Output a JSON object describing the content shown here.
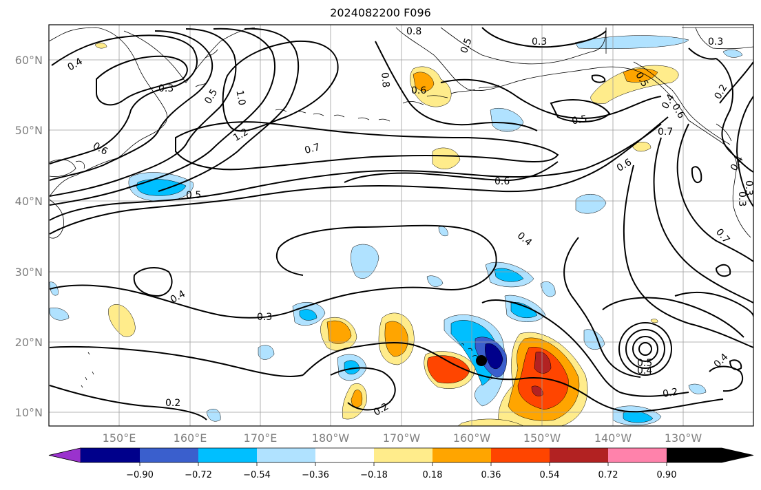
{
  "title": "2024082200 F096",
  "map": {
    "lat_labels": [
      "10°N",
      "20°N",
      "30°N",
      "40°N",
      "50°N",
      "60°N"
    ],
    "lon_labels": [
      "150°E",
      "160°E",
      "170°E",
      "180°W",
      "170°W",
      "160°W",
      "150°W",
      "140°W",
      "130°W"
    ],
    "contour_labels": [
      "0.8",
      "0.5",
      "0.3",
      "0.3",
      "0.4",
      "0.3",
      "0.5",
      "1.0",
      "0.8",
      "0.6",
      "1.2",
      "0.7",
      "0.6",
      "0.5",
      "0.7",
      "0.6",
      "0.6",
      "0.2",
      "0.4",
      "0.3",
      "0.5",
      "0.6",
      "0.5",
      "0.4",
      "0.4",
      "0.3",
      "0.7",
      "0.2",
      "0.2",
      "0.5",
      "0.4",
      "0.2",
      "0.4",
      "0.4",
      "0.3"
    ],
    "storm_marker": "tropical-cyclone-center"
  },
  "colorbar": {
    "tick_labels": [
      "−0.90",
      "−0.72",
      "−0.54",
      "−0.36",
      "−0.18",
      "0.18",
      "0.36",
      "0.54",
      "0.72",
      "0.90"
    ],
    "colors": [
      "#9a32cd",
      "#00008b",
      "#3a5fcd",
      "#00bfff",
      "#b0e2ff",
      "#ffffff",
      "#ffec8b",
      "#ffa500",
      "#ff4500",
      "#b22222",
      "#ff82ab"
    ]
  }
}
